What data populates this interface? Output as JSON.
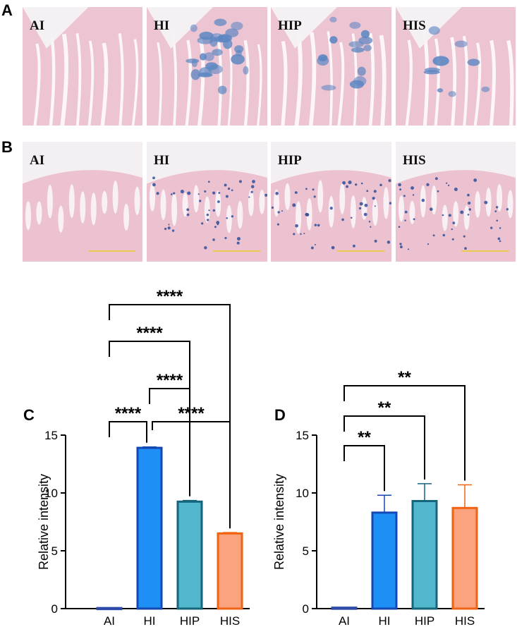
{
  "figure": {
    "panels": {
      "A": {
        "letter": "A",
        "images": [
          {
            "label": "AI",
            "stain": "none"
          },
          {
            "label": "HI",
            "stain": "heavy"
          },
          {
            "label": "HIP",
            "stain": "medium"
          },
          {
            "label": "HIS",
            "stain": "light"
          }
        ]
      },
      "B": {
        "letter": "B",
        "images": [
          {
            "label": "AI",
            "stain": "none"
          },
          {
            "label": "HI",
            "stain": "dots"
          },
          {
            "label": "HIP",
            "stain": "dots"
          },
          {
            "label": "HIS",
            "stain": "dots"
          }
        ]
      },
      "C": {
        "letter": "C"
      },
      "D": {
        "letter": "D"
      }
    },
    "colors": {
      "tissue": "#ebbfce",
      "background": "#f3eff2",
      "stain_blue": "#5b86c2",
      "scale_bar": "#e8d000"
    }
  },
  "chart_data": [
    {
      "panel": "C",
      "type": "bar",
      "categories": [
        "AI",
        "HI",
        "HIP",
        "HIS"
      ],
      "values": [
        0.05,
        13.9,
        9.25,
        6.5
      ],
      "errors": [
        0,
        0.08,
        0.1,
        0.08
      ],
      "ylabel": "Relative intensity",
      "ylim": [
        0,
        15
      ],
      "yticks": [
        0,
        5,
        10,
        15
      ],
      "bar_fill": [
        "#5b7fd6",
        "#1e90f5",
        "#52b7cd",
        "#fba37f"
      ],
      "bar_edge": [
        "#2d4aa8",
        "#1347b3",
        "#14657a",
        "#ef6312"
      ],
      "brackets": [
        {
          "from": 0,
          "to": 3,
          "label": "****"
        },
        {
          "from": 0,
          "to": 2,
          "label": "****"
        },
        {
          "from": 1,
          "to": 2,
          "label": "****"
        },
        {
          "from": 0,
          "to": 1,
          "label": "****"
        },
        {
          "from": 1,
          "to": 3,
          "label": "****"
        }
      ]
    },
    {
      "panel": "D",
      "type": "bar",
      "categories": [
        "AI",
        "HI",
        "HIP",
        "HIS"
      ],
      "values": [
        0.08,
        8.3,
        9.3,
        8.7
      ],
      "errors": [
        0,
        1.5,
        1.5,
        2.0
      ],
      "ylabel": "Relative intensity",
      "ylim": [
        0,
        15
      ],
      "yticks": [
        0,
        5,
        10,
        15
      ],
      "bar_fill": [
        "#5b7fd6",
        "#1e90f5",
        "#52b7cd",
        "#fba37f"
      ],
      "bar_edge": [
        "#2d4aa8",
        "#1347b3",
        "#14657a",
        "#ef6312"
      ],
      "brackets": [
        {
          "from": 0,
          "to": 3,
          "label": "**"
        },
        {
          "from": 0,
          "to": 2,
          "label": "**"
        },
        {
          "from": 0,
          "to": 1,
          "label": "**"
        }
      ]
    }
  ]
}
